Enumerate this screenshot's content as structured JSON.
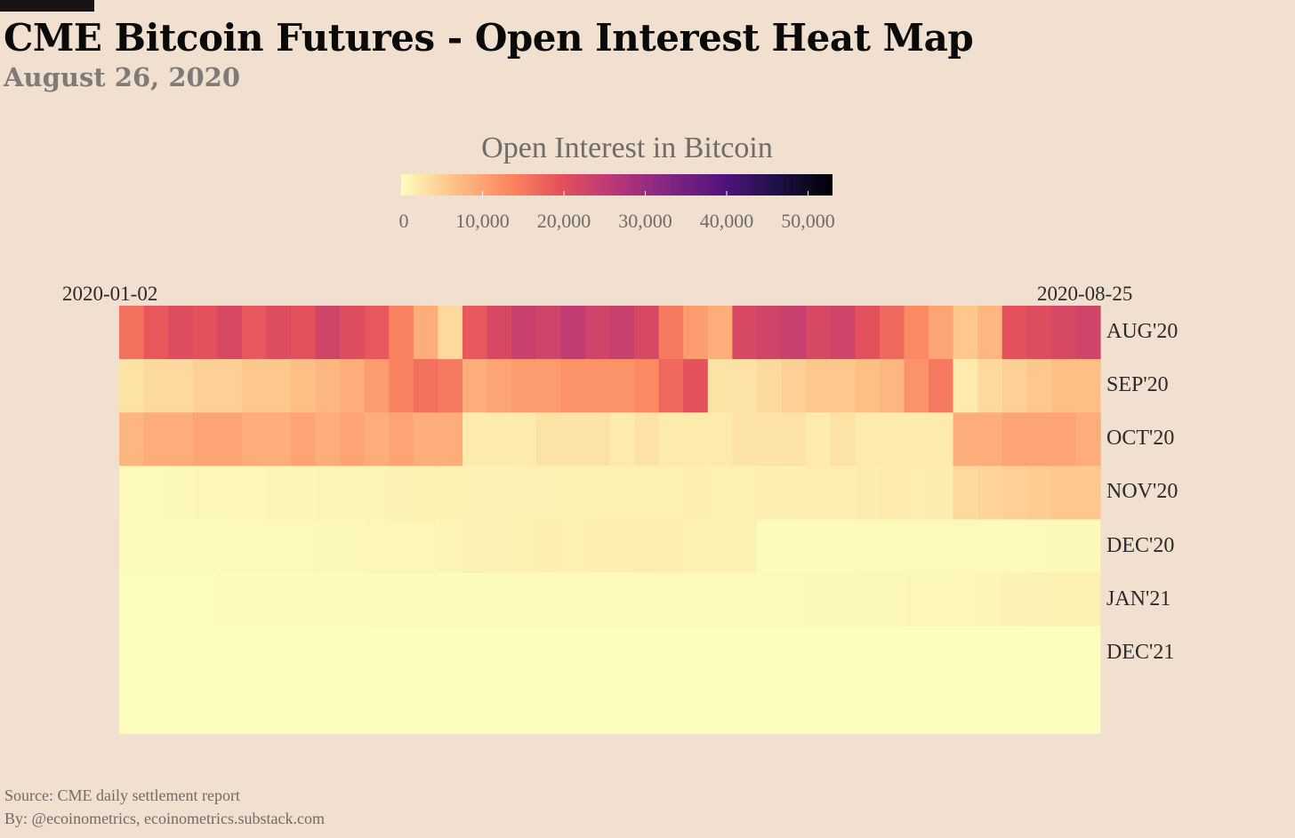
{
  "header": {
    "title": "CME Bitcoin Futures - Open Interest Heat Map",
    "subtitle": "August 26, 2020"
  },
  "legend": {
    "title": "Open Interest in Bitcoin",
    "ticks": [
      "0",
      "10,000",
      "20,000",
      "30,000",
      "40,000",
      "50,000"
    ],
    "tick_values": [
      0,
      10000,
      20000,
      30000,
      40000,
      50000
    ],
    "max": 53000,
    "palette": "magma-reversed",
    "colors": [
      "#fcfdbf",
      "#fec287",
      "#fb8861",
      "#e5505a",
      "#b63679",
      "#822681",
      "#51127c",
      "#1d1147",
      "#000004"
    ]
  },
  "footer": {
    "source": "Source: CME daily settlement report",
    "by": "By: @ecoinometrics, ecoinometrics.substack.com"
  },
  "chart_data": {
    "type": "heatmap",
    "title": "CME Bitcoin Futures - Open Interest Heat Map",
    "subtitle": "August 26, 2020",
    "x_start_label": "2020-01-02",
    "x_end_label": "2020-08-25",
    "x_start": "2020-01-02",
    "x_end": "2020-08-25",
    "rows": [
      "AUG'20",
      "SEP'20",
      "OCT'20",
      "NOV'20",
      "DEC'20",
      "JAN'21",
      "DEC'21",
      ""
    ],
    "n_cols": 40,
    "value_unit": "Bitcoin",
    "values": [
      [
        16000,
        19000,
        21000,
        20000,
        22000,
        19000,
        21000,
        20000,
        23000,
        21000,
        19000,
        14000,
        9000,
        4000,
        19000,
        22000,
        24000,
        23000,
        25000,
        23000,
        24000,
        22000,
        15000,
        11000,
        9000,
        22000,
        23000,
        24000,
        22000,
        23000,
        20000,
        17000,
        13000,
        10000,
        6000,
        8000,
        20000,
        21000,
        22000,
        23000
      ],
      [
        3000,
        4000,
        4000,
        5000,
        5000,
        6000,
        6000,
        7000,
        8000,
        9000,
        11000,
        14000,
        16000,
        15000,
        9000,
        10000,
        11000,
        11000,
        12000,
        12000,
        12000,
        13000,
        17000,
        20000,
        3000,
        3000,
        4000,
        5000,
        6000,
        6000,
        7000,
        8000,
        12000,
        15000,
        2000,
        4000,
        5000,
        6000,
        7000,
        7000
      ],
      [
        8000,
        9000,
        9000,
        10000,
        10000,
        9000,
        9000,
        10000,
        9000,
        10000,
        9000,
        10000,
        9000,
        9000,
        2000,
        2000,
        2000,
        3000,
        3000,
        3000,
        2000,
        3000,
        2000,
        2000,
        2000,
        3000,
        3000,
        3000,
        2000,
        3000,
        2000,
        2000,
        2000,
        2000,
        9000,
        9000,
        10000,
        10000,
        10000,
        9000
      ],
      [
        500,
        500,
        600,
        700,
        700,
        800,
        900,
        900,
        1000,
        1000,
        1100,
        1200,
        1500,
        1500,
        1200,
        1200,
        1300,
        1300,
        1400,
        1500,
        1500,
        1500,
        1500,
        1600,
        1500,
        1500,
        1600,
        1700,
        1800,
        1800,
        1900,
        2000,
        1800,
        1900,
        4000,
        4500,
        5000,
        5500,
        6000,
        6000
      ],
      [
        300,
        300,
        400,
        400,
        500,
        500,
        500,
        500,
        600,
        600,
        700,
        700,
        800,
        1000,
        1200,
        1300,
        1500,
        1600,
        1500,
        1600,
        1700,
        1800,
        1600,
        1500,
        1500,
        1400,
        300,
        300,
        300,
        300,
        400,
        400,
        400,
        400,
        500,
        500,
        500,
        500,
        600,
        600
      ],
      [
        100,
        100,
        100,
        100,
        200,
        200,
        200,
        200,
        200,
        200,
        300,
        300,
        300,
        300,
        300,
        300,
        300,
        300,
        400,
        400,
        400,
        400,
        500,
        500,
        500,
        500,
        500,
        500,
        600,
        600,
        600,
        600,
        700,
        800,
        800,
        1000,
        1200,
        1300,
        1500,
        1500
      ],
      [
        0,
        0,
        0,
        0,
        0,
        0,
        0,
        0,
        0,
        0,
        0,
        0,
        0,
        0,
        0,
        0,
        0,
        0,
        0,
        0,
        0,
        0,
        0,
        0,
        0,
        0,
        0,
        0,
        0,
        0,
        0,
        0,
        0,
        0,
        0,
        0,
        0,
        0,
        0,
        0
      ],
      [
        0,
        0,
        0,
        0,
        0,
        0,
        0,
        0,
        0,
        0,
        0,
        0,
        0,
        0,
        0,
        0,
        0,
        0,
        0,
        0,
        0,
        0,
        0,
        0,
        0,
        0,
        0,
        0,
        0,
        0,
        0,
        0,
        0,
        0,
        0,
        0,
        0,
        0,
        0,
        0
      ]
    ]
  }
}
